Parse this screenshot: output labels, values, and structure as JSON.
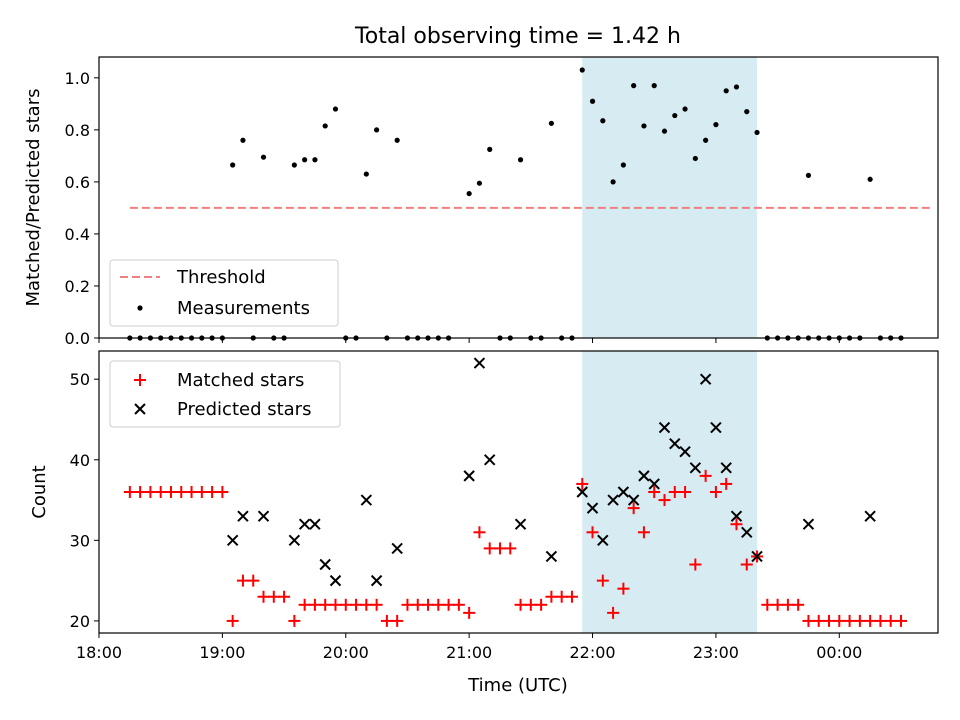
{
  "title": "Total observing time = 1.42 h",
  "colors": {
    "threshold": "#f08080",
    "measurement": "#000000",
    "matched": "#ff0000",
    "predicted": "#000000",
    "highlight": "#add8e6"
  },
  "chart_data": [
    {
      "type": "scatter",
      "ylabel": "Matched/Predicted stars",
      "xlim": [
        "18:00",
        "00:48"
      ],
      "ylim": [
        0,
        1.08
      ],
      "yticks": [
        "0.0",
        "0.2",
        "0.4",
        "0.6",
        "0.8",
        "1.0"
      ],
      "highlight_span": [
        "21:55",
        "23:20"
      ],
      "legend": {
        "placement": "lower-left",
        "entries": [
          "Threshold",
          "Measurements"
        ]
      },
      "threshold": {
        "name": "Threshold",
        "value": 0.5,
        "x_range": [
          "18:15",
          "00:45"
        ]
      },
      "series": [
        {
          "name": "Measurements",
          "points": [
            [
              "18:15",
              0
            ],
            [
              "18:20",
              0
            ],
            [
              "18:25",
              0
            ],
            [
              "18:30",
              0
            ],
            [
              "18:35",
              0
            ],
            [
              "18:40",
              0
            ],
            [
              "18:45",
              0
            ],
            [
              "18:50",
              0
            ],
            [
              "18:55",
              0
            ],
            [
              "19:00",
              0
            ],
            [
              "19:05",
              0.665
            ],
            [
              "19:10",
              0.76
            ],
            [
              "19:15",
              0
            ],
            [
              "19:20",
              0.695
            ],
            [
              "19:25",
              0
            ],
            [
              "19:30",
              0
            ],
            [
              "19:35",
              0.665
            ],
            [
              "19:40",
              0.685
            ],
            [
              "19:45",
              0.685
            ],
            [
              "19:50",
              0.815
            ],
            [
              "19:55",
              0.88
            ],
            [
              "20:00",
              0
            ],
            [
              "20:05",
              0
            ],
            [
              "20:10",
              0.63
            ],
            [
              "20:15",
              0.8
            ],
            [
              "20:20",
              0
            ],
            [
              "20:25",
              0.76
            ],
            [
              "20:30",
              0
            ],
            [
              "20:35",
              0
            ],
            [
              "20:40",
              0
            ],
            [
              "20:45",
              0
            ],
            [
              "20:50",
              0
            ],
            [
              "21:00",
              0.555
            ],
            [
              "21:05",
              0.595
            ],
            [
              "21:10",
              0.725
            ],
            [
              "21:15",
              0
            ],
            [
              "21:20",
              0
            ],
            [
              "21:25",
              0.685
            ],
            [
              "21:30",
              0
            ],
            [
              "21:35",
              0
            ],
            [
              "21:40",
              0.825
            ],
            [
              "21:45",
              0
            ],
            [
              "21:50",
              0
            ],
            [
              "21:55",
              1.03
            ],
            [
              "22:00",
              0.91
            ],
            [
              "22:05",
              0.835
            ],
            [
              "22:10",
              0.6
            ],
            [
              "22:15",
              0.665
            ],
            [
              "22:20",
              0.97
            ],
            [
              "22:25",
              0.815
            ],
            [
              "22:30",
              0.97
            ],
            [
              "22:35",
              0.795
            ],
            [
              "22:40",
              0.855
            ],
            [
              "22:45",
              0.88
            ],
            [
              "22:50",
              0.69
            ],
            [
              "22:55",
              0.76
            ],
            [
              "23:00",
              0.82
            ],
            [
              "23:05",
              0.95
            ],
            [
              "23:10",
              0.965
            ],
            [
              "23:15",
              0.87
            ],
            [
              "23:20",
              0.79
            ],
            [
              "23:25",
              0
            ],
            [
              "23:30",
              0
            ],
            [
              "23:35",
              0
            ],
            [
              "23:40",
              0
            ],
            [
              "23:45",
              0
            ],
            [
              "23:50",
              0
            ],
            [
              "23:55",
              0
            ],
            [
              "00:00",
              0
            ],
            [
              "00:05",
              0
            ],
            [
              "00:10",
              0
            ],
            [
              "00:15",
              0.61
            ],
            [
              "00:20",
              0
            ],
            [
              "00:25",
              0
            ],
            [
              "00:30",
              0
            ],
            [
              "23:45",
              0.625
            ]
          ]
        }
      ]
    },
    {
      "type": "scatter",
      "xlabel": "Time (UTC)",
      "ylabel": "Count",
      "xlim": [
        "18:00",
        "00:48"
      ],
      "ylim": [
        18.5,
        53.5
      ],
      "xticks": [
        "18:00",
        "19:00",
        "20:00",
        "21:00",
        "22:00",
        "23:00",
        "00:00"
      ],
      "yticks": [
        "20",
        "30",
        "40",
        "50"
      ],
      "highlight_span": [
        "21:55",
        "23:20"
      ],
      "legend": {
        "placement": "top-left",
        "entries": [
          "Matched stars",
          "Predicted stars"
        ]
      },
      "series": [
        {
          "name": "Matched stars",
          "points": [
            [
              "18:15",
              36
            ],
            [
              "18:20",
              36
            ],
            [
              "18:25",
              36
            ],
            [
              "18:30",
              36
            ],
            [
              "18:35",
              36
            ],
            [
              "18:40",
              36
            ],
            [
              "18:45",
              36
            ],
            [
              "18:50",
              36
            ],
            [
              "18:55",
              36
            ],
            [
              "19:00",
              36
            ],
            [
              "19:05",
              20
            ],
            [
              "19:10",
              25
            ],
            [
              "19:15",
              25
            ],
            [
              "19:20",
              23
            ],
            [
              "19:25",
              23
            ],
            [
              "19:30",
              23
            ],
            [
              "19:35",
              20
            ],
            [
              "19:40",
              22
            ],
            [
              "19:45",
              22
            ],
            [
              "19:50",
              22
            ],
            [
              "19:55",
              22
            ],
            [
              "20:00",
              22
            ],
            [
              "20:05",
              22
            ],
            [
              "20:10",
              22
            ],
            [
              "20:15",
              22
            ],
            [
              "20:20",
              20
            ],
            [
              "20:25",
              20
            ],
            [
              "20:30",
              22
            ],
            [
              "20:35",
              22
            ],
            [
              "20:40",
              22
            ],
            [
              "20:45",
              22
            ],
            [
              "20:50",
              22
            ],
            [
              "20:55",
              22
            ],
            [
              "21:00",
              21
            ],
            [
              "21:05",
              31
            ],
            [
              "21:10",
              29
            ],
            [
              "21:15",
              29
            ],
            [
              "21:20",
              29
            ],
            [
              "21:25",
              22
            ],
            [
              "21:30",
              22
            ],
            [
              "21:35",
              22
            ],
            [
              "21:40",
              23
            ],
            [
              "21:45",
              23
            ],
            [
              "21:50",
              23
            ],
            [
              "21:55",
              37
            ],
            [
              "22:00",
              31
            ],
            [
              "22:05",
              25
            ],
            [
              "22:10",
              21
            ],
            [
              "22:15",
              24
            ],
            [
              "22:20",
              34
            ],
            [
              "22:25",
              31
            ],
            [
              "22:30",
              36
            ],
            [
              "22:35",
              35
            ],
            [
              "22:40",
              36
            ],
            [
              "22:45",
              36
            ],
            [
              "22:50",
              27
            ],
            [
              "22:55",
              38
            ],
            [
              "23:00",
              36
            ],
            [
              "23:05",
              37
            ],
            [
              "23:10",
              32
            ],
            [
              "23:15",
              27
            ],
            [
              "23:20",
              28
            ],
            [
              "23:25",
              22
            ],
            [
              "23:30",
              22
            ],
            [
              "23:35",
              22
            ],
            [
              "23:40",
              22
            ],
            [
              "23:45",
              20
            ],
            [
              "23:50",
              20
            ],
            [
              "23:55",
              20
            ],
            [
              "00:00",
              20
            ],
            [
              "00:05",
              20
            ],
            [
              "00:10",
              20
            ],
            [
              "00:15",
              20
            ],
            [
              "00:20",
              20
            ],
            [
              "00:25",
              20
            ],
            [
              "00:30",
              20
            ]
          ]
        },
        {
          "name": "Predicted stars",
          "points": [
            [
              "19:05",
              30
            ],
            [
              "19:10",
              33
            ],
            [
              "19:20",
              33
            ],
            [
              "19:35",
              30
            ],
            [
              "19:40",
              32
            ],
            [
              "19:45",
              32
            ],
            [
              "19:50",
              27
            ],
            [
              "19:55",
              25
            ],
            [
              "20:10",
              35
            ],
            [
              "20:15",
              25
            ],
            [
              "20:25",
              29
            ],
            [
              "21:00",
              38
            ],
            [
              "21:05",
              52
            ],
            [
              "21:10",
              40
            ],
            [
              "21:25",
              32
            ],
            [
              "21:40",
              28
            ],
            [
              "21:55",
              36
            ],
            [
              "22:00",
              34
            ],
            [
              "22:05",
              30
            ],
            [
              "22:10",
              35
            ],
            [
              "22:15",
              36
            ],
            [
              "22:20",
              35
            ],
            [
              "22:25",
              38
            ],
            [
              "22:30",
              37
            ],
            [
              "22:35",
              44
            ],
            [
              "22:40",
              42
            ],
            [
              "22:45",
              41
            ],
            [
              "22:50",
              39
            ],
            [
              "22:55",
              50
            ],
            [
              "23:00",
              44
            ],
            [
              "23:05",
              39
            ],
            [
              "23:10",
              33
            ],
            [
              "23:15",
              31
            ],
            [
              "23:20",
              28
            ],
            [
              "23:45",
              32
            ],
            [
              "00:15",
              33
            ]
          ]
        }
      ]
    }
  ]
}
